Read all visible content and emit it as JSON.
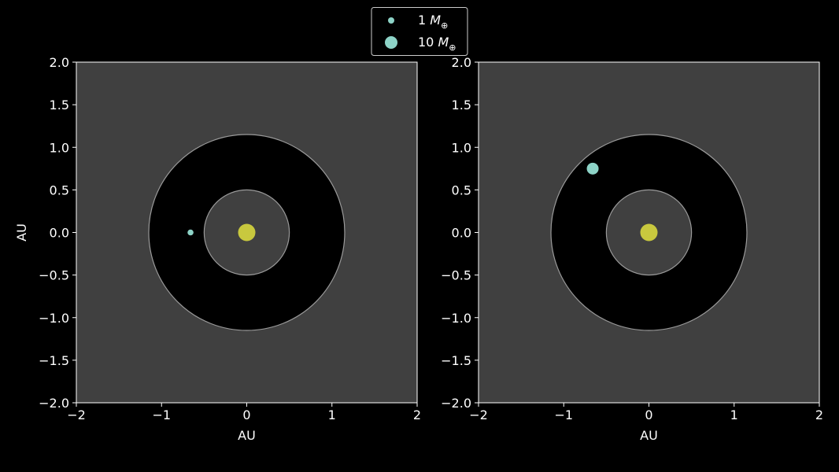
{
  "legend": {
    "placement": "top-center",
    "entries": [
      {
        "prefix": "1 ",
        "symbol": "M",
        "subscript": "⊕",
        "marker_mass": 1
      },
      {
        "prefix": "10 ",
        "symbol": "M",
        "subscript": "⊕",
        "marker_mass": 10
      }
    ]
  },
  "colors": {
    "background": "#000000",
    "axes_face": "#404040",
    "habitable_zone": "#000000",
    "ring_stroke": "#9a9a9a",
    "star": "#c8c83e",
    "planet": "#8dd3c7",
    "text": "#ffffff"
  },
  "chart_data": [
    {
      "type": "scatter",
      "panel": "left",
      "xlabel": "AU",
      "ylabel": "AU",
      "xlim": [
        -2,
        2
      ],
      "ylim": [
        -2,
        2
      ],
      "xticks": [
        "−2",
        "−1",
        "0",
        "1",
        "2"
      ],
      "yticks": [
        "2.0",
        "1.5",
        "1.0",
        "0.5",
        "0.0",
        "−0.5",
        "−1.0",
        "−1.5",
        "−2.0"
      ],
      "grid": false,
      "zone": {
        "inner_radius": 0.5,
        "outer_radius": 1.15
      },
      "star": {
        "x": 0,
        "y": 0
      },
      "planet": {
        "x": -0.66,
        "y": 0.0,
        "mass": 1
      }
    },
    {
      "type": "scatter",
      "panel": "right",
      "xlabel": "AU",
      "ylabel": "",
      "xlim": [
        -2,
        2
      ],
      "ylim": [
        -2,
        2
      ],
      "xticks": [
        "−2",
        "−1",
        "0",
        "1",
        "2"
      ],
      "yticks": [
        "2.0",
        "1.5",
        "1.0",
        "0.5",
        "0.0",
        "−0.5",
        "−1.0",
        "−1.5",
        "−2.0"
      ],
      "grid": false,
      "zone": {
        "inner_radius": 0.5,
        "outer_radius": 1.15
      },
      "star": {
        "x": 0,
        "y": 0
      },
      "planet": {
        "x": -0.66,
        "y": 0.75,
        "mass": 10
      }
    }
  ]
}
